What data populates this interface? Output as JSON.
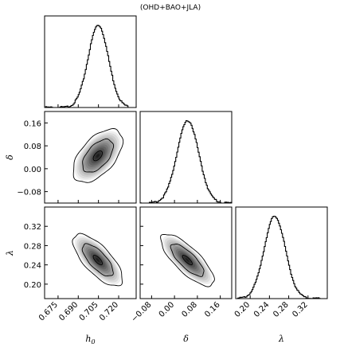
{
  "chart_data": {
    "type": "corner",
    "title": "(OHD+BAO+JLA)",
    "parameters": [
      {
        "key": "h0",
        "label": "h",
        "label_sub": "0",
        "range": [
          0.665,
          0.733
        ],
        "ticks": [
          0.675,
          0.69,
          0.705,
          0.72
        ],
        "tick_labels": [
          "0.675",
          "0.690",
          "0.705",
          "0.720"
        ],
        "mean": 0.7045,
        "sigma": 0.0075
      },
      {
        "key": "delta",
        "label": "δ",
        "label_sub": "",
        "range": [
          -0.12,
          0.2
        ],
        "ticks": [
          -0.08,
          0.0,
          0.08,
          0.16
        ],
        "tick_labels": [
          "−0.08",
          "0.00",
          "0.08",
          "0.16"
        ],
        "mean": 0.045,
        "sigma": 0.038
      },
      {
        "key": "lambda",
        "label": "λ",
        "label_sub": "",
        "range": [
          0.17,
          0.36
        ],
        "ticks": [
          0.2,
          0.24,
          0.28,
          0.32
        ],
        "tick_labels": [
          "0.20",
          "0.24",
          "0.28",
          "0.32"
        ],
        "mean": 0.25,
        "sigma": 0.022
      }
    ],
    "correlations": {
      "h0_delta": 0.55,
      "h0_lambda": -0.72,
      "delta_lambda": -0.78
    },
    "contour_levels": [
      "1σ",
      "2σ"
    ],
    "colormap": {
      "low": "#ffffff",
      "high": "#1a1a1a"
    }
  }
}
